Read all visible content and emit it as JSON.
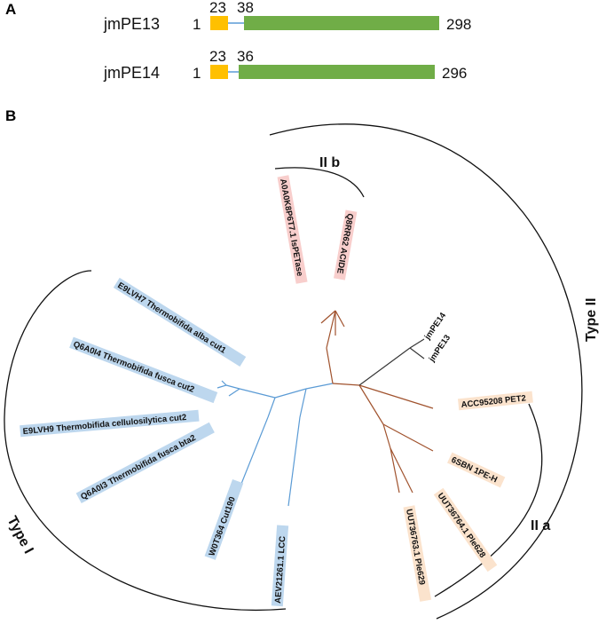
{
  "panel_a": {
    "label": "A",
    "colors": {
      "signal_peptide": "#FFC000",
      "catalytic_domain": "#70AD47",
      "linker": "#5B9BD5"
    },
    "proteins": [
      {
        "name": "jmPE13",
        "start": "1",
        "signal_end": "23",
        "domain_start": "38",
        "end": "298"
      },
      {
        "name": "jmPE14",
        "start": "1",
        "signal_end": "23",
        "domain_start": "36",
        "end": "296"
      }
    ]
  },
  "panel_b": {
    "label": "B",
    "colors": {
      "type_i_branch": "#5B9BD5",
      "type_ii_branch": "#A0522D",
      "jm_branch": "#333333",
      "type_i_highlight": "#BDD7EE",
      "type_iia_highlight": "#FBE3CD",
      "type_iib_highlight": "#F8CECC"
    },
    "clades": {
      "type_i": "Type I",
      "type_ii": "Type II",
      "type_iia": "II a",
      "type_iib": "II b"
    },
    "leaves": {
      "e9lvh7": "E9LVH7 Thermobifida alba cut1",
      "q6a0i4": "Q6A0I4 Thermobifida fusca cut2",
      "e9lvh9": "E9LVH9 Thermobifida cellulosilytica cut2",
      "q6a0i3": "Q6A0I3 Thermobifida fusca bta2",
      "w0t364": "W0T364 Cut190",
      "aev21261": "AEV21261.1 LCC",
      "a0a0k8p6t7": "A0A0K8P6T7.1 IsPETase",
      "q8rr62": "Q8RR62 ACIDE",
      "jmpe14": "jmPE14",
      "jmpe13": "jmPE13",
      "acc95208": "ACC95208 PET2",
      "sbn6": "6SBN 1PE-H",
      "uut36764": "UUT36764.1 Ple628",
      "uut36763": "UUT36763.1 Ple629"
    }
  }
}
